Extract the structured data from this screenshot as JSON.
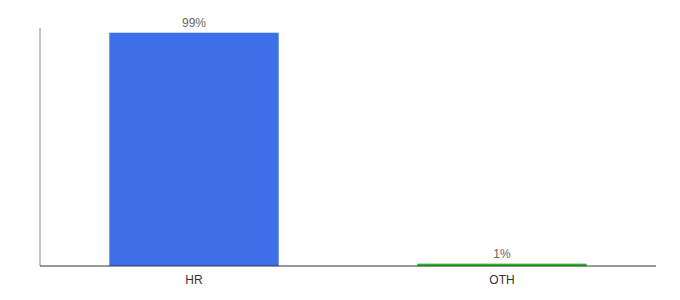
{
  "chart_data": {
    "type": "bar",
    "categories": [
      "HR",
      "OTH"
    ],
    "values": [
      99,
      1
    ],
    "value_labels": [
      "99%",
      "1%"
    ],
    "data_labels": true,
    "colors": [
      "#3d6fe8",
      "#22bb22"
    ],
    "ylim": [
      0,
      101
    ],
    "tick_labels": "x"
  }
}
